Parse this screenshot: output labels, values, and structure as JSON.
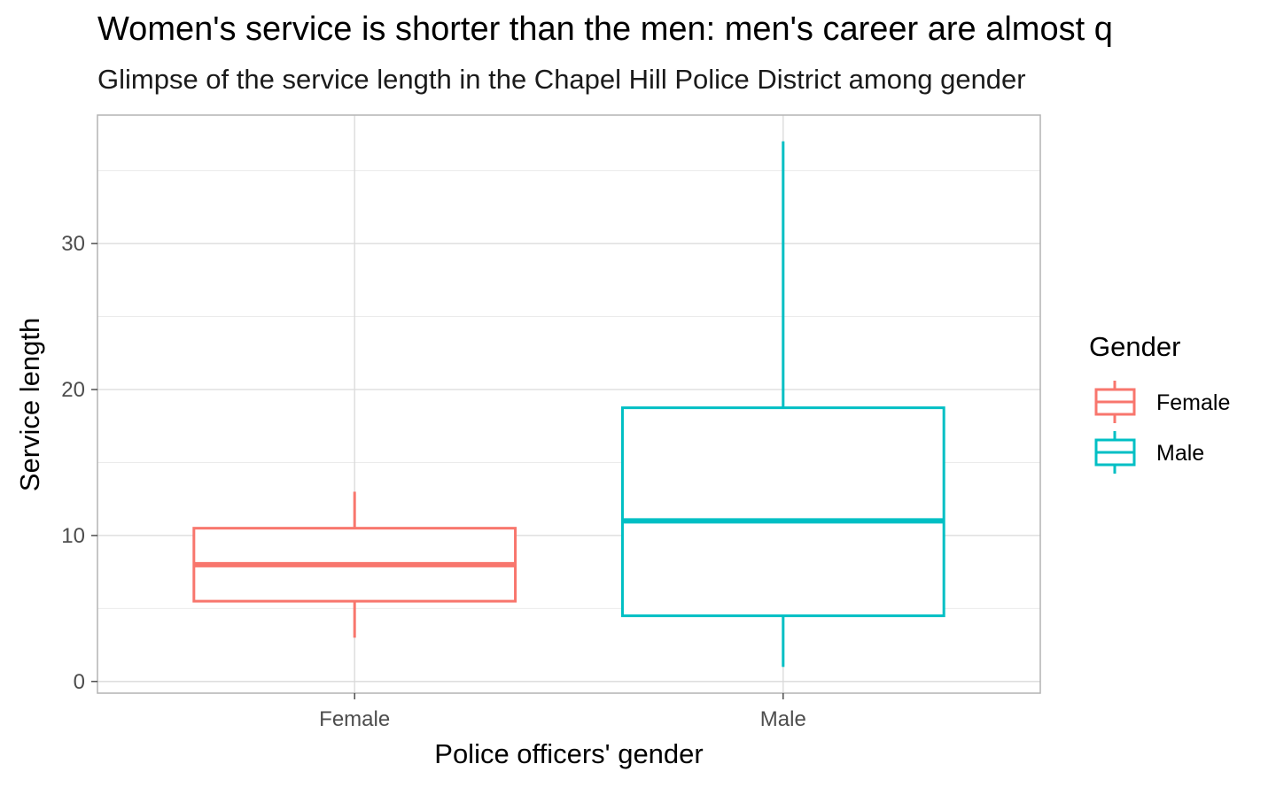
{
  "chart_data": {
    "type": "boxplot",
    "title": "Women's service is shorter than the men: men's career are almost q",
    "subtitle": "Glimpse of the service length in the Chapel Hill Police District among gender",
    "xlabel": "Police officers' gender",
    "ylabel": "Service length",
    "ylim": [
      -0.8,
      38.8
    ],
    "yticks": [
      0,
      10,
      20,
      30
    ],
    "categories": [
      "Female",
      "Male"
    ],
    "series": [
      {
        "name": "Female",
        "color": "#F8766D",
        "min": 3,
        "q1": 5.5,
        "median": 8,
        "q3": 10.5,
        "max": 13
      },
      {
        "name": "Male",
        "color": "#00BFC4",
        "min": 1,
        "q1": 4.5,
        "median": 11,
        "q3": 18.75,
        "max": 37
      }
    ],
    "grid": true,
    "legend": {
      "title": "Gender",
      "position": "right",
      "entries": [
        "Female",
        "Male"
      ]
    }
  }
}
